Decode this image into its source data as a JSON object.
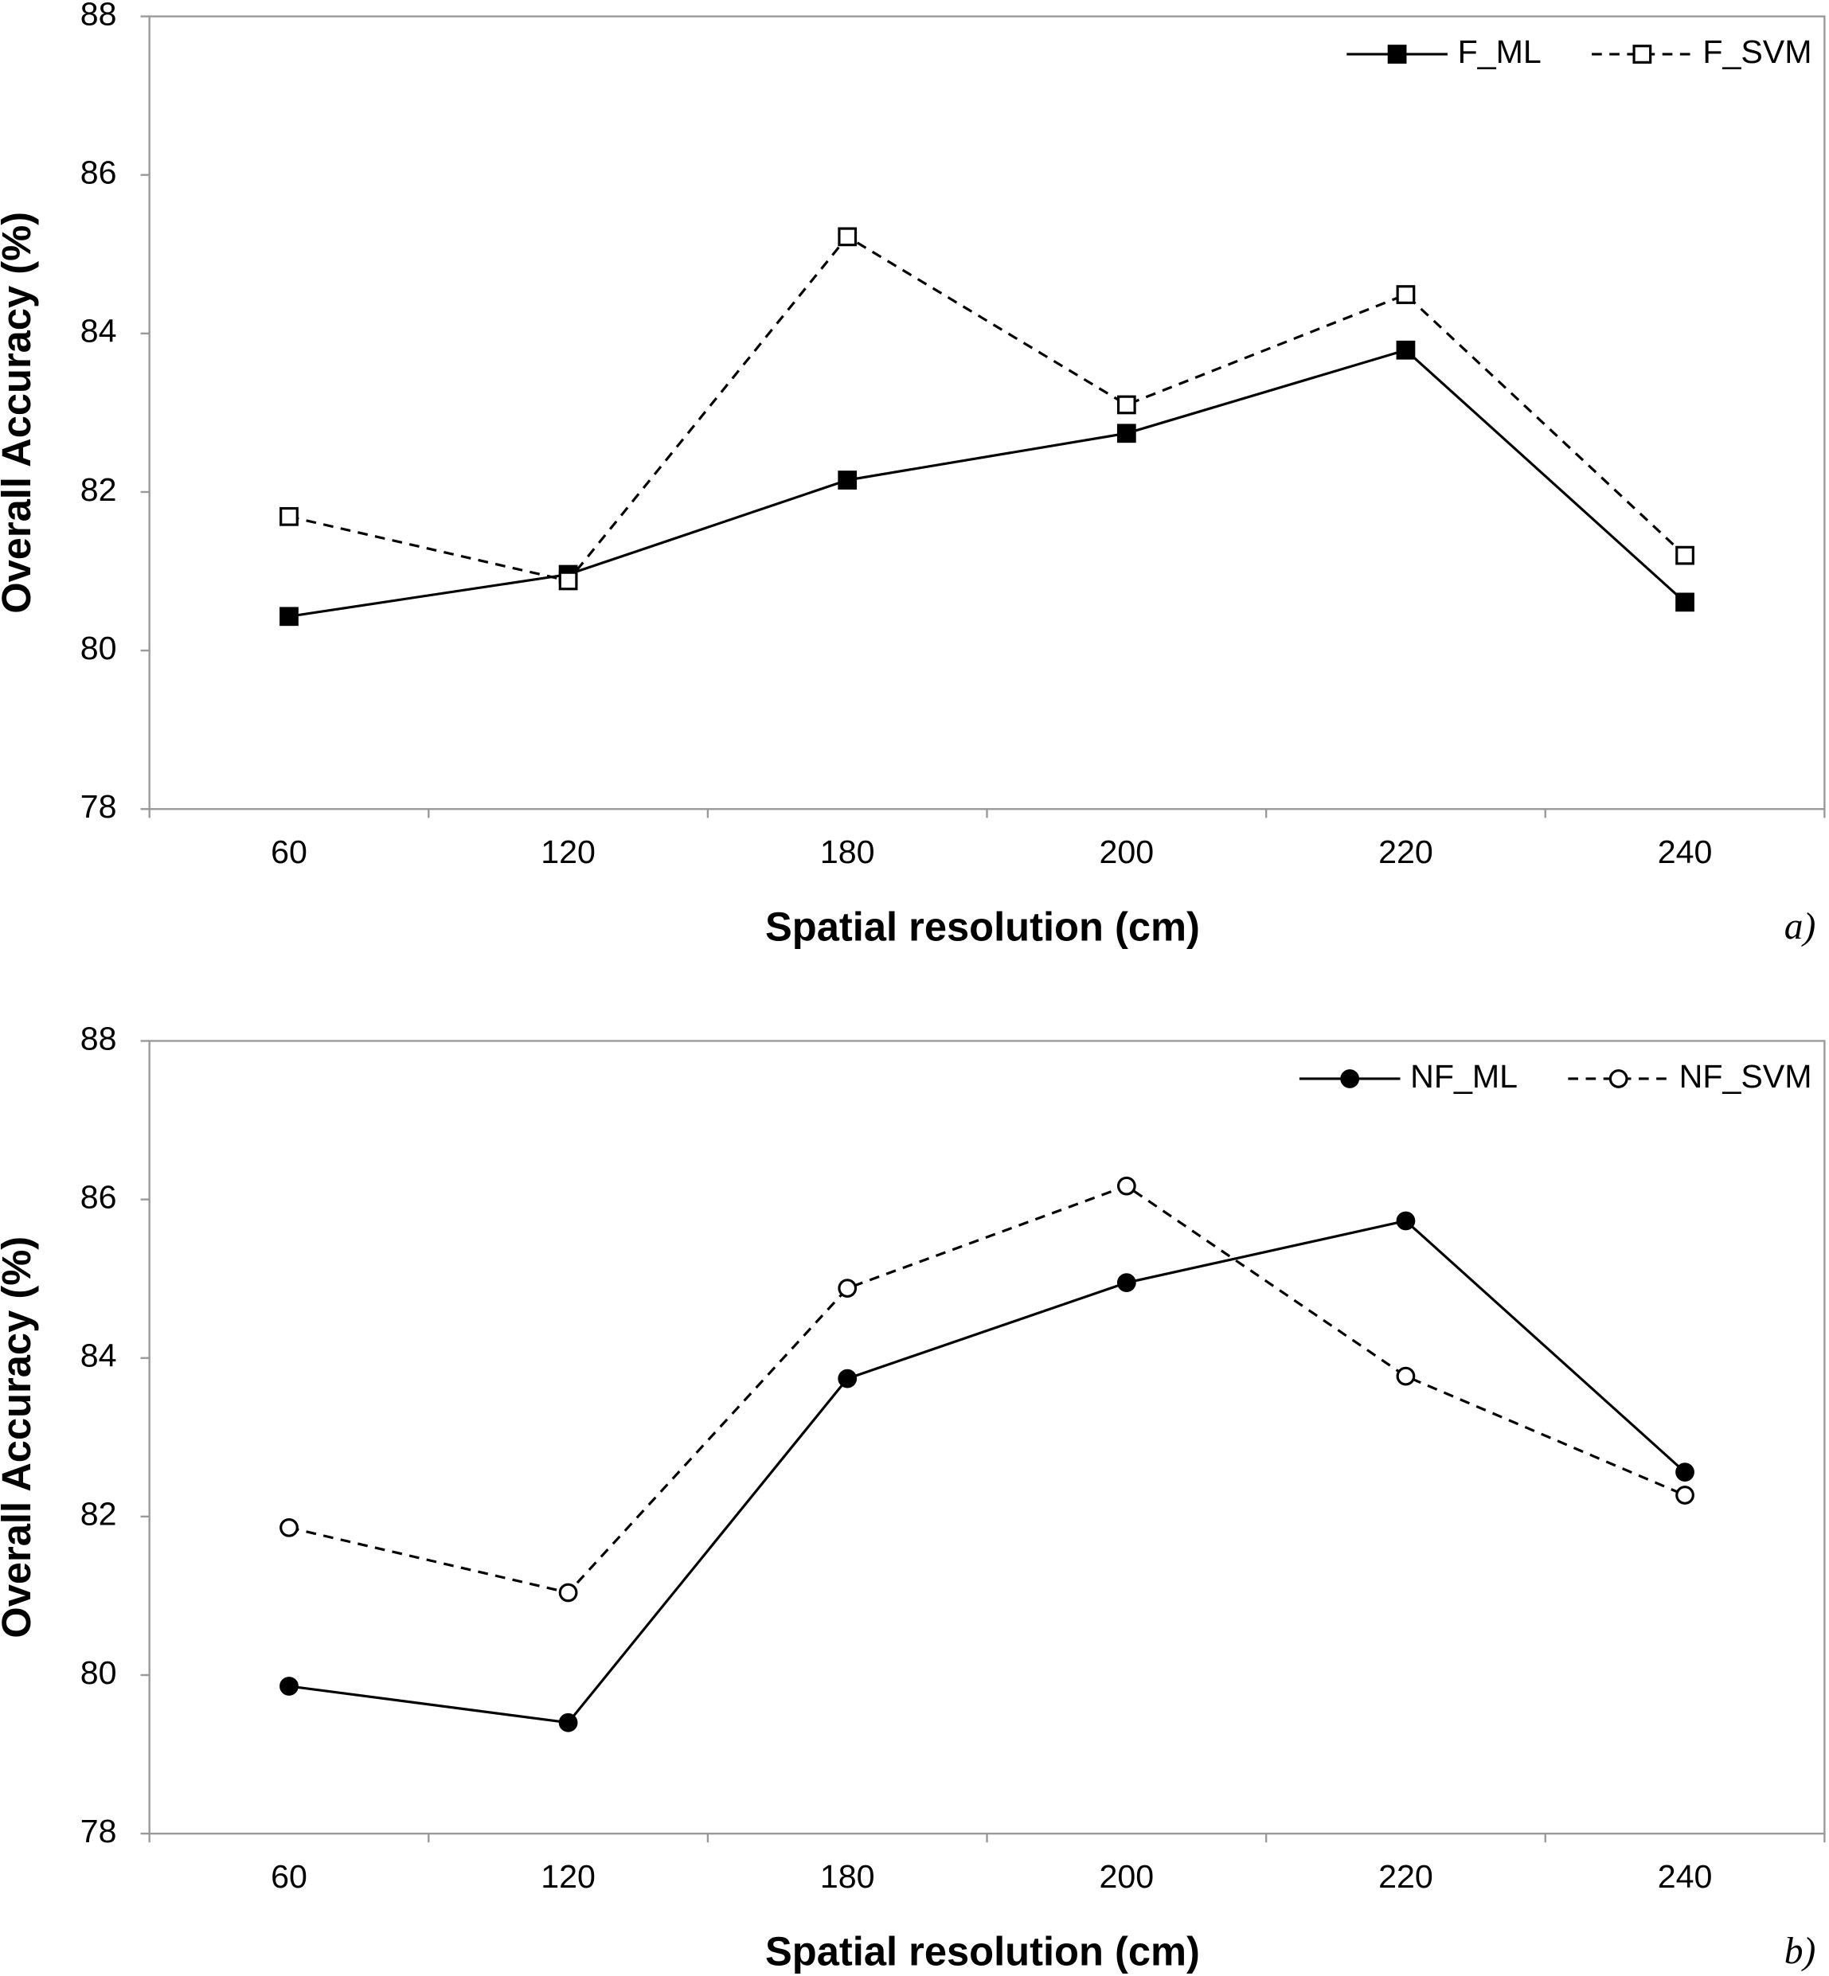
{
  "chart_data": [
    {
      "type": "line",
      "panel_label": "a)",
      "x_label": "Spatial resolution (cm)",
      "y_label": "Overall Accuracy (%)",
      "categories": [
        "60",
        "120",
        "180",
        "200",
        "220",
        "240"
      ],
      "series": [
        {
          "name": "F_ML",
          "color": "#000000",
          "marker": "square",
          "filled": true,
          "dashed": false,
          "values": [
            80.43,
            80.96,
            82.15,
            82.74,
            83.79,
            80.61
          ]
        },
        {
          "name": "F_SVM",
          "color": "#000000",
          "marker": "square",
          "filled": false,
          "dashed": true,
          "values": [
            81.69,
            80.88,
            85.22,
            83.1,
            84.49,
            81.2
          ]
        }
      ],
      "ylim": [
        78,
        88
      ],
      "yticks": [
        78,
        80,
        82,
        84,
        86,
        88
      ],
      "legend": "upper right"
    },
    {
      "type": "line",
      "panel_label": "b)",
      "x_label": "Spatial resolution (cm)",
      "y_label": "Overall Accuracy (%)",
      "categories": [
        "60",
        "120",
        "180",
        "200",
        "220",
        "240"
      ],
      "series": [
        {
          "name": "NF_ML",
          "color": "#000000",
          "marker": "circle",
          "filled": true,
          "dashed": false,
          "values": [
            79.86,
            79.4,
            83.74,
            84.95,
            85.73,
            82.56
          ]
        },
        {
          "name": "NF_SVM",
          "color": "#000000",
          "marker": "circle",
          "filled": false,
          "dashed": true,
          "values": [
            81.86,
            81.04,
            84.88,
            86.17,
            83.77,
            82.27
          ]
        }
      ],
      "ylim": [
        78,
        88
      ],
      "yticks": [
        78,
        80,
        82,
        84,
        86,
        88
      ],
      "legend": "upper right"
    }
  ]
}
